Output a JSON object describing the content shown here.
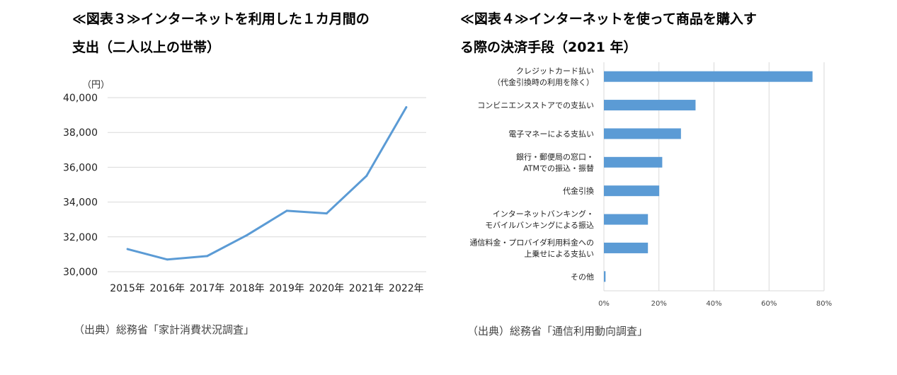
{
  "left": {
    "title_line1": "≪図表３≫インターネットを利用した１カ月間の",
    "title_line2": "支出（二人以上の世帯）",
    "source": "（出典）総務省「家計消費状況調査」"
  },
  "right": {
    "title_line1": "≪図表４≫インターネットを使って商品を購入す",
    "title_line2": "る際の決済手段（2021 年）",
    "source": "（出典）総務省「通信利用動向調査」"
  },
  "chart_data": [
    {
      "type": "line",
      "unit_label": "（円）",
      "x": [
        "2015年",
        "2016年",
        "2017年",
        "2018年",
        "2019年",
        "2020年",
        "2021年",
        "2022年"
      ],
      "series": [
        {
          "values": [
            31300,
            30700,
            30900,
            32100,
            33500,
            33350,
            35500,
            39450
          ]
        }
      ],
      "ylim": [
        30000,
        40000
      ],
      "yticks": [
        "30,000",
        "32,000",
        "34,000",
        "36,000",
        "38,000",
        "40,000"
      ],
      "ytick_values": [
        30000,
        32000,
        34000,
        36000,
        38000,
        40000
      ],
      "grid": true,
      "color": "#5b9bd5"
    },
    {
      "type": "bar",
      "orientation": "horizontal",
      "categories": [
        [
          "クレジットカード払い",
          "（代金引換時の利用を除く）"
        ],
        [
          "コンビニエンスストアでの支払い"
        ],
        [
          "電子マネーによる支払い"
        ],
        [
          "銀行・郵便局の窓口・",
          "ATMでの振込・振替"
        ],
        [
          "代金引換"
        ],
        [
          "インターネットバンキング・",
          "モバイルバンキングによる振込"
        ],
        [
          "通信料金・プロバイダ利用料金への",
          "上乗せによる支払い"
        ],
        [
          "その他"
        ]
      ],
      "values": [
        75.8,
        33.3,
        28.0,
        21.2,
        20.1,
        16.0,
        16.0,
        0.6
      ],
      "xlim": [
        0,
        80
      ],
      "xticks": [
        "0%",
        "20%",
        "40%",
        "60%",
        "80%"
      ],
      "xtick_values": [
        0,
        20,
        40,
        60,
        80
      ],
      "grid": true,
      "color": "#5b9bd5"
    }
  ]
}
